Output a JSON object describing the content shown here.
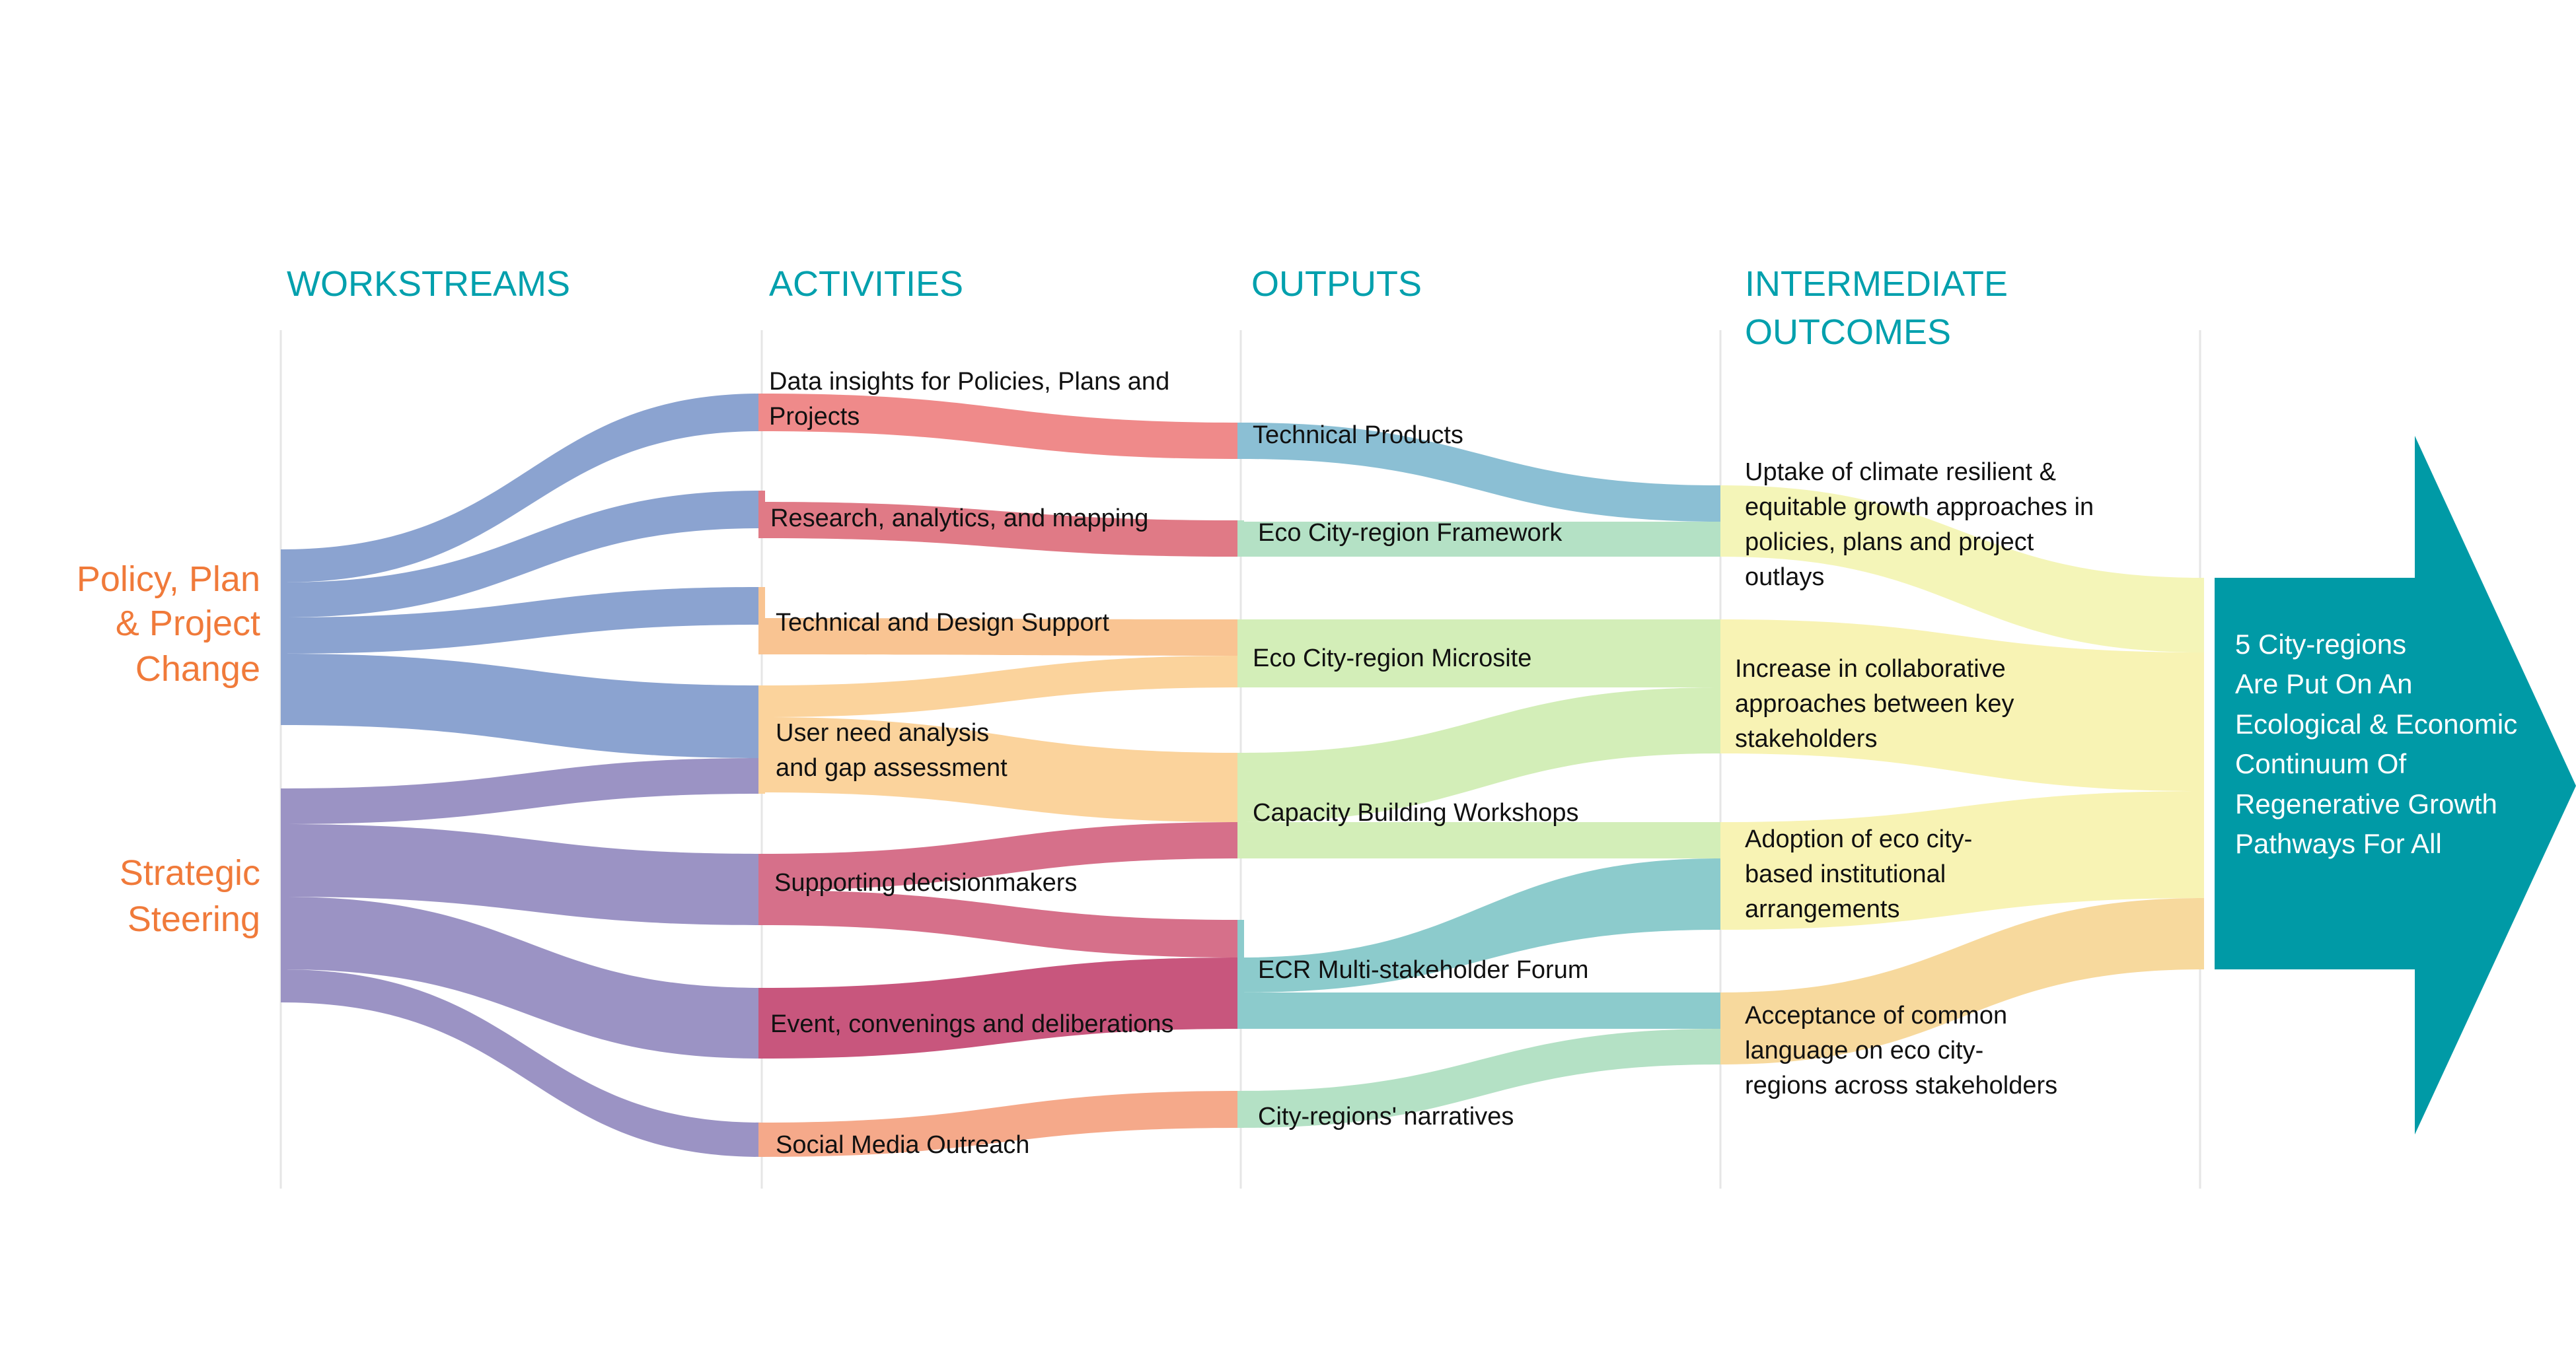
{
  "headers": {
    "workstreams": "WORKSTREAMS",
    "activities": "ACTIVITIES",
    "outputs": "OUTPUTS",
    "intermediate_line1": "INTERMEDIATE",
    "intermediate_line2": "OUTCOMES"
  },
  "workstreams": {
    "policy": [
      "Policy, Plan",
      "& Project",
      "Change"
    ],
    "strategic": [
      "Strategic",
      "Steering"
    ]
  },
  "activities": {
    "data_insights": [
      "Data insights for Policies, Plans and",
      "Projects"
    ],
    "research": "Research, analytics, and mapping",
    "technical_design": "Technical and Design Support",
    "user_need": [
      "User need analysis",
      "and gap assessment"
    ],
    "decisionmakers": "Supporting decisionmakers",
    "events": "Event, convenings and deliberations",
    "social_media": "Social Media Outreach"
  },
  "outputs": {
    "technical_products": "Technical Products",
    "framework": "Eco City-region Framework",
    "microsite": "Eco City-region Microsite",
    "workshops": "Capacity Building Workshops",
    "forum": "ECR Multi-stakeholder Forum",
    "narratives": "City-regions' narratives"
  },
  "outcomes": {
    "uptake": [
      "Uptake of climate resilient &",
      "equitable growth approaches in",
      "policies, plans and project",
      "outlays"
    ],
    "collaborative": [
      "Increase in collaborative",
      "approaches between key",
      "stakeholders"
    ],
    "adoption": [
      "Adoption of eco city-",
      "based institutional",
      "arrangements"
    ],
    "language": [
      "Acceptance of common",
      "language on eco city-",
      "regions across stakeholders"
    ]
  },
  "goal": {
    "lines": [
      "5 City-regions",
      "Are Put On An",
      "Ecological & Economic",
      "Continuum Of",
      "Regenerative Growth",
      "Pathways For All"
    ]
  },
  "colors": {
    "header": "#00a0ad",
    "workstream": "#f07a3a",
    "goal_arrow": "#009aa6",
    "policy_flow": "#8ba3d0",
    "steering_flow": "#9b93c4",
    "pink": "#ef8a8a",
    "rose": "#e07a86",
    "peach": "#f9c492",
    "light_peach": "#fbd39c",
    "magenta": "#c8567d",
    "mauve": "#d6708a",
    "salmon": "#f5a98a",
    "teal": "#8bbfd4",
    "mint": "#b4e1c5",
    "light_green": "#d3eeb8",
    "cyan_green": "#8ccbcc",
    "pale_yellow": "#f4f5b8",
    "pale_yellow2": "#f8f3b4",
    "orange_yellow": "#f7d99d"
  }
}
